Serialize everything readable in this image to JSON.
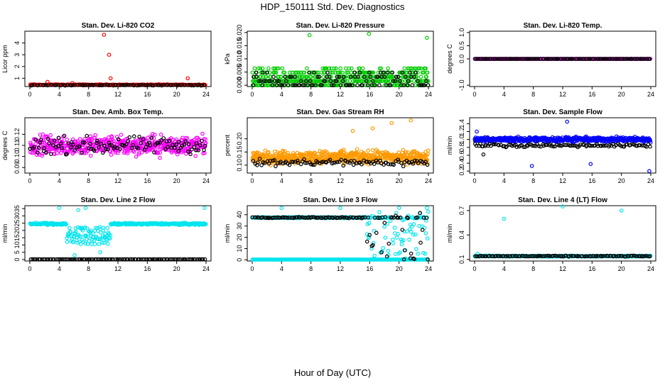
{
  "figure": {
    "title": "HDP_150111  Std. Dev. Diagnostics",
    "xlabel": "Hour of Day (UTC)"
  },
  "chart_data": [
    {
      "type": "scatter",
      "id": "co2",
      "title": "Stan. Dev. Li-820 CO2",
      "ylabel": "Licor ppm",
      "xlim": [
        0,
        24
      ],
      "ylim": [
        0.3,
        5.0
      ],
      "xticks": [
        "0",
        "4",
        "8",
        "12",
        "16",
        "20",
        "24"
      ],
      "yticks": [
        {
          "v": 1,
          "label": "1"
        },
        {
          "v": 2,
          "label": "2"
        },
        {
          "v": 3,
          "label": "3"
        },
        {
          "v": 4,
          "label": "4"
        }
      ],
      "series": [
        {
          "name": "line1",
          "color": "#ff0000",
          "base": 0.45,
          "spread": 0.06,
          "n": 200,
          "outliers": [
            [
              10.1,
              4.7
            ],
            [
              10.8,
              3.0
            ],
            [
              11.0,
              1.0
            ],
            [
              2.4,
              0.7
            ],
            [
              21.5,
              1.0
            ],
            [
              5.8,
              0.6
            ]
          ]
        },
        {
          "name": "line2",
          "color": "#000000",
          "base": 0.42,
          "spread": 0.05,
          "n": 90,
          "outliers": []
        }
      ]
    },
    {
      "type": "scatter",
      "id": "pressure",
      "title": "Stan. Dev. Li-820 Pressure",
      "ylabel": "kPa",
      "xlim": [
        0,
        24
      ],
      "ylim": [
        -0.0005,
        0.0205
      ],
      "xticks": [
        "0",
        "4",
        "8",
        "12",
        "16",
        "20",
        "24"
      ],
      "yticks": [
        {
          "v": 0,
          "label": "0.000"
        },
        {
          "v": 0.005,
          "label": "0.005"
        },
        {
          "v": 0.01,
          "label": "0.010"
        },
        {
          "v": 0.015,
          "label": "0.015"
        },
        {
          "v": 0.02,
          "label": "0.020"
        }
      ],
      "series": [
        {
          "name": "line1",
          "color": "#00cc00",
          "levels": [
            0,
            0.0016,
            0.0032,
            0.0048,
            0.0064
          ],
          "levelweights": [
            2,
            4,
            3,
            2,
            1
          ],
          "n": 520,
          "outliers": [
            [
              7.8,
              0.019
            ],
            [
              15.9,
              0.0195
            ],
            [
              23.8,
              0.018
            ]
          ]
        },
        {
          "name": "line2",
          "color": "#000000",
          "levels": [
            0,
            0.0016,
            0.0032,
            0.0048
          ],
          "levelweights": [
            4,
            3,
            2,
            1
          ],
          "n": 120,
          "outliers": []
        }
      ]
    },
    {
      "type": "scatter",
      "id": "temp",
      "title": "Stan. Dev. Li-820 Temp.",
      "ylabel": "degrees C",
      "xlim": [
        0,
        24
      ],
      "ylim": [
        -1.05,
        1.05
      ],
      "xticks": [
        "0",
        "4",
        "8",
        "12",
        "16",
        "20",
        "24"
      ],
      "yticks": [
        {
          "v": -1,
          "label": "-1.0"
        },
        {
          "v": 0,
          "label": "0.0"
        },
        {
          "v": 0.5,
          "label": "0.5"
        },
        {
          "v": 1,
          "label": "1.0"
        }
      ],
      "series": [
        {
          "name": "line1",
          "color": "#ff00ff",
          "base": 0,
          "spread": 0,
          "n": 220,
          "outliers": []
        },
        {
          "name": "line2",
          "color": "#000000",
          "base": 0,
          "spread": 0,
          "n": 120,
          "outliers": []
        }
      ]
    },
    {
      "type": "scatter",
      "id": "ambbox",
      "title": "Stan. Dev. Amb. Box Temp.",
      "ylabel": "degrees C",
      "xlim": [
        0,
        24
      ],
      "ylim": [
        0.085,
        0.135
      ],
      "xticks": [
        "0",
        "4",
        "8",
        "12",
        "16",
        "20",
        "24"
      ],
      "yticks": [
        {
          "v": 0.09,
          "label": "0.09"
        },
        {
          "v": 0.1,
          "label": "0.10"
        },
        {
          "v": 0.11,
          "label": "0.11"
        },
        {
          "v": 0.12,
          "label": "0.12"
        }
      ],
      "series": [
        {
          "name": "line1",
          "color": "#ff00ff",
          "base": 0.11,
          "spread": 0.013,
          "n": 520,
          "outliers": []
        },
        {
          "name": "line2",
          "color": "#000000",
          "base": 0.11,
          "spread": 0.011,
          "n": 110,
          "outliers": []
        }
      ]
    },
    {
      "type": "scatter",
      "id": "rh",
      "title": "Stan. Dev. Gas Stream RH",
      "ylabel": "percent",
      "xlim": [
        0,
        24
      ],
      "ylim": [
        0.07,
        0.28
      ],
      "xticks": [
        "0",
        "4",
        "8",
        "12",
        "16",
        "20",
        "24"
      ],
      "yticks": [
        {
          "v": 0.1,
          "label": "0.10"
        },
        {
          "v": 0.15,
          "label": "0.15"
        },
        {
          "v": 0.2,
          "label": "0.20"
        }
      ],
      "series": [
        {
          "name": "line1",
          "color": "#ff9900",
          "base": 0.13,
          "spread": 0.035,
          "n": 560,
          "outliers": [
            [
              16.4,
              0.24
            ],
            [
              19.0,
              0.26
            ],
            [
              21.6,
              0.27
            ],
            [
              13.7,
              0.23
            ]
          ]
        },
        {
          "name": "line2",
          "color": "#000000",
          "base": 0.11,
          "spread": 0.02,
          "n": 100,
          "outliers": []
        }
      ]
    },
    {
      "type": "scatter",
      "id": "sampleflow",
      "title": "Stan. Dev. Sample Flow",
      "ylabel": "ml/min",
      "xlim": [
        0,
        24
      ],
      "ylim": [
        0.15,
        1.55
      ],
      "xticks": [
        "0",
        "4",
        "8",
        "12",
        "16",
        "20",
        "24"
      ],
      "yticks": [
        {
          "v": 0.2,
          "label": "0.2"
        },
        {
          "v": 0.4,
          "label": "0.4"
        },
        {
          "v": 0.6,
          "label": "0.6"
        },
        {
          "v": 0.8,
          "label": "0.8"
        },
        {
          "v": 1.0,
          "label": "1.0"
        },
        {
          "v": 1.2,
          "label": "1.2"
        },
        {
          "v": 1.4,
          "label": "1.4"
        }
      ],
      "series": [
        {
          "name": "line1",
          "color": "#0000ff",
          "base": 1.0,
          "spread": 0.09,
          "n": 560,
          "outliers": [
            [
              7.8,
              0.33
            ],
            [
              15.8,
              0.38
            ],
            [
              23.8,
              0.2
            ],
            [
              12.6,
              1.45
            ],
            [
              0.3,
              1.2
            ]
          ]
        },
        {
          "name": "line2",
          "color": "#000000",
          "base": 0.85,
          "spread": 0.06,
          "n": 110,
          "outliers": [
            [
              1.2,
              0.62
            ]
          ]
        }
      ]
    },
    {
      "type": "scatter",
      "id": "line2flow",
      "title": "Stan. Dev. Line 2 Flow",
      "ylabel": "ml/min",
      "xlim": [
        0,
        24
      ],
      "ylim": [
        -1,
        37
      ],
      "xticks": [
        "0",
        "4",
        "8",
        "12",
        "16",
        "20",
        "24"
      ],
      "yticks": [
        {
          "v": 0,
          "label": "0"
        },
        {
          "v": 5,
          "label": "5"
        },
        {
          "v": 10,
          "label": "10"
        },
        {
          "v": 15,
          "label": "15"
        },
        {
          "v": 20,
          "label": "20"
        },
        {
          "v": 25,
          "label": "25"
        },
        {
          "v": 30,
          "label": "30"
        },
        {
          "v": 35,
          "label": "35"
        }
      ],
      "series": [
        {
          "name": "line1",
          "color": "#00e5ee",
          "base": 24.5,
          "spread": 1.0,
          "n": 360,
          "dip": [
            5.0,
            11.0,
            12
          ],
          "outliers": [
            [
              4.0,
              35.5
            ],
            [
              23.8,
              35.5
            ],
            [
              7.6,
              35.5
            ],
            [
              6.6,
              34
            ],
            [
              9.6,
              5
            ],
            [
              6.1,
              3
            ]
          ]
        },
        {
          "name": "line2",
          "color": "#000000",
          "base": 0.2,
          "spread": 0.05,
          "n": 110,
          "outliers": []
        }
      ]
    },
    {
      "type": "scatter",
      "id": "line3flow",
      "title": "Stan. Dev. Line 3 Flow",
      "ylabel": "ml/min",
      "xlim": [
        0,
        24
      ],
      "ylim": [
        -1,
        48
      ],
      "xticks": [
        "0",
        "4",
        "8",
        "12",
        "16",
        "20",
        "24"
      ],
      "yticks": [
        {
          "v": 0,
          "label": "0"
        },
        {
          "v": 10,
          "label": "10"
        },
        {
          "v": 20,
          "label": "20"
        },
        {
          "v": 30,
          "label": "30"
        },
        {
          "v": 40,
          "label": "40"
        }
      ],
      "series": [
        {
          "name": "line1",
          "color": "#00e5ee",
          "base": 37.5,
          "spread": 0.8,
          "n": 300,
          "scatterFrom": 15.5,
          "outliers": [
            [
              4.0,
              46
            ],
            [
              12.0,
              46
            ],
            [
              20.0,
              46
            ],
            [
              23.8,
              46
            ]
          ]
        },
        {
          "name": "line1-low",
          "color": "#00e5ee",
          "base": 0.3,
          "spread": 0.05,
          "n": 260,
          "outliers": []
        },
        {
          "name": "line2",
          "color": "#000000",
          "base": 37.5,
          "spread": 0.8,
          "n": 110,
          "scatterFrom": 15.5,
          "outliers": []
        }
      ]
    },
    {
      "type": "scatter",
      "id": "line4flow",
      "title": "Stan. Dev. Line 4 (LT) Flow",
      "ylabel": "ml/min",
      "xlim": [
        0,
        24
      ],
      "ylim": [
        0.08,
        0.76
      ],
      "xticks": [
        "0",
        "4",
        "8",
        "12",
        "16",
        "20",
        "24"
      ],
      "yticks": [
        {
          "v": 0.1,
          "label": "0.1"
        },
        {
          "v": 0.4,
          "label": "0.4"
        },
        {
          "v": 0.7,
          "label": "0.7"
        }
      ],
      "series": [
        {
          "name": "line1",
          "color": "#00e5ee",
          "base": 0.14,
          "spread": 0.01,
          "n": 300,
          "outliers": [
            [
              4.0,
              0.6
            ],
            [
              12.0,
              0.75
            ],
            [
              20.0,
              0.7
            ],
            [
              0.4,
              0.17
            ]
          ]
        },
        {
          "name": "line2",
          "color": "#000000",
          "base": 0.14,
          "spread": 0.008,
          "n": 110,
          "outliers": []
        }
      ]
    }
  ]
}
